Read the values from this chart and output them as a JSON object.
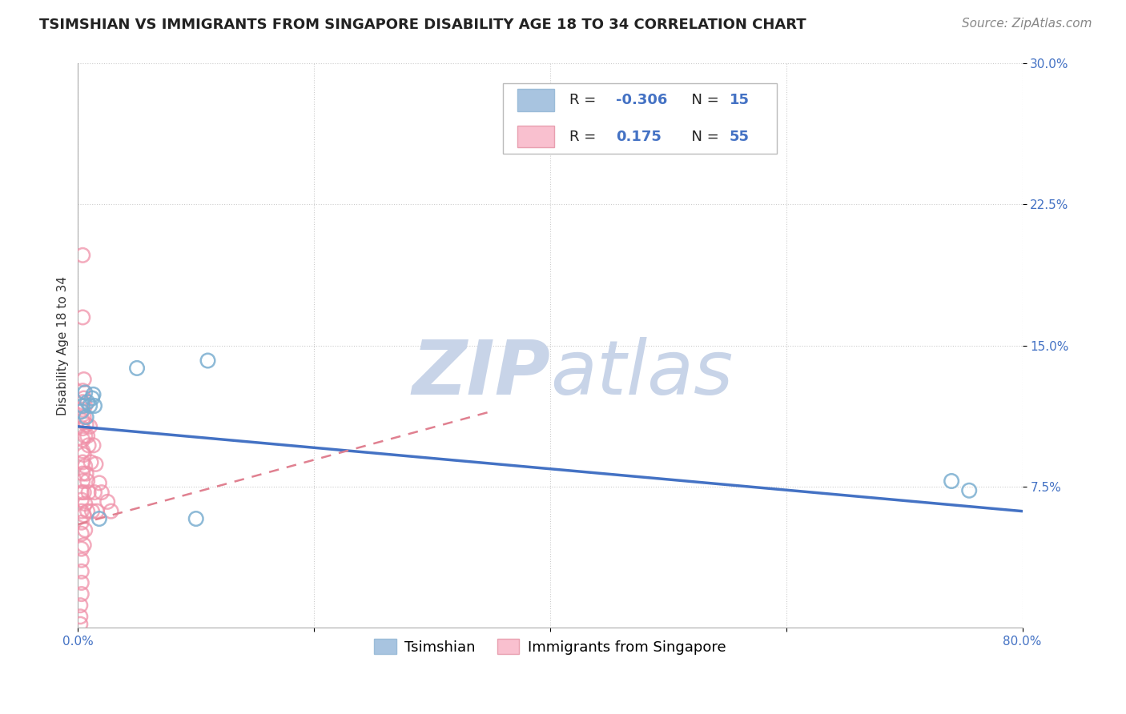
{
  "title": "TSIMSHIAN VS IMMIGRANTS FROM SINGAPORE DISABILITY AGE 18 TO 34 CORRELATION CHART",
  "source_text": "Source: ZipAtlas.com",
  "ylabel": "Disability Age 18 to 34",
  "xlim": [
    0.0,
    0.8
  ],
  "ylim": [
    0.0,
    0.3
  ],
  "xticks": [
    0.0,
    0.2,
    0.4,
    0.6,
    0.8
  ],
  "yticks": [
    0.075,
    0.15,
    0.225,
    0.3
  ],
  "ytick_labels": [
    "7.5%",
    "15.0%",
    "22.5%",
    "30.0%"
  ],
  "xtick_labels": [
    "0.0%",
    "",
    "",
    "",
    "80.0%"
  ],
  "grid_color": "#cccccc",
  "background_color": "#ffffff",
  "tsimshian_color": "#a8c4e0",
  "tsimshian_edge_color": "#7aaed0",
  "singapore_color": "#f9c0cf",
  "singapore_edge_color": "#f090a8",
  "tsimshian_R": "-0.306",
  "tsimshian_N": "15",
  "singapore_R": "0.175",
  "singapore_N": "55",
  "r_label_color": "#4472c4",
  "n_label_color": "#4472c4",
  "legend_label_1": "Tsimshian",
  "legend_label_2": "Immigrants from Singapore",
  "tsimshian_scatter_x": [
    0.003,
    0.004,
    0.006,
    0.007,
    0.008,
    0.01,
    0.012,
    0.013,
    0.014,
    0.05,
    0.11,
    0.74,
    0.755,
    0.018,
    0.1
  ],
  "tsimshian_scatter_y": [
    0.115,
    0.118,
    0.125,
    0.112,
    0.12,
    0.118,
    0.122,
    0.124,
    0.118,
    0.138,
    0.142,
    0.078,
    0.073,
    0.058,
    0.058
  ],
  "singapore_scatter_x": [
    0.002,
    0.002,
    0.002,
    0.003,
    0.003,
    0.003,
    0.003,
    0.003,
    0.003,
    0.003,
    0.003,
    0.003,
    0.003,
    0.004,
    0.004,
    0.004,
    0.004,
    0.004,
    0.004,
    0.004,
    0.004,
    0.004,
    0.004,
    0.005,
    0.005,
    0.005,
    0.005,
    0.005,
    0.005,
    0.006,
    0.006,
    0.006,
    0.006,
    0.007,
    0.007,
    0.008,
    0.008,
    0.008,
    0.009,
    0.009,
    0.01,
    0.011,
    0.012,
    0.013,
    0.014,
    0.015,
    0.016,
    0.018,
    0.02,
    0.025,
    0.028,
    0.004,
    0.004,
    0.005,
    0.006
  ],
  "singapore_scatter_y": [
    0.002,
    0.006,
    0.012,
    0.018,
    0.024,
    0.03,
    0.036,
    0.042,
    0.05,
    0.056,
    0.062,
    0.068,
    0.072,
    0.078,
    0.082,
    0.088,
    0.094,
    0.1,
    0.106,
    0.11,
    0.116,
    0.12,
    0.126,
    0.132,
    0.112,
    0.092,
    0.072,
    0.06,
    0.044,
    0.118,
    0.102,
    0.086,
    0.066,
    0.108,
    0.082,
    0.102,
    0.078,
    0.062,
    0.097,
    0.072,
    0.107,
    0.088,
    0.062,
    0.097,
    0.072,
    0.087,
    0.062,
    0.077,
    0.072,
    0.067,
    0.062,
    0.165,
    0.198,
    0.122,
    0.052
  ],
  "tsimshian_trend_x": [
    0.0,
    0.8
  ],
  "tsimshian_trend_y": [
    0.107,
    0.062
  ],
  "singapore_trend_x": [
    0.0,
    0.35
  ],
  "singapore_trend_y": [
    0.055,
    0.115
  ],
  "watermark_zip": "ZIP",
  "watermark_atlas": "atlas",
  "watermark_color": "#cdd8ea",
  "title_fontsize": 13,
  "axis_label_fontsize": 11,
  "tick_fontsize": 11,
  "legend_fontsize": 13,
  "source_fontsize": 11
}
